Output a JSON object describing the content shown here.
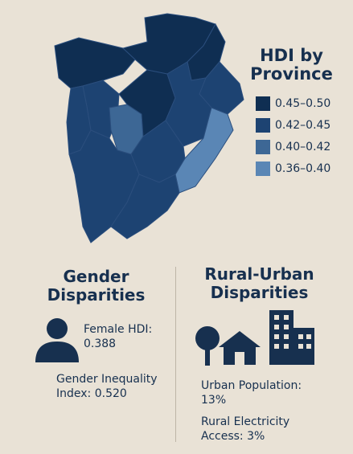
{
  "legend": {
    "title": "HDI by Province",
    "items": [
      {
        "label": "0.45–0.50",
        "color": "#0f2e52"
      },
      {
        "label": "0.42–0.45",
        "color": "#1d4372"
      },
      {
        "label": "0.40–0.42",
        "color": "#3d6795"
      },
      {
        "label": "0.36–0.40",
        "color": "#5a86b5"
      }
    ]
  },
  "gender": {
    "title": "Gender Disparities",
    "female_hdi": "Female HDI: 0.388",
    "gii": "Gender Inequality Index: 0.520"
  },
  "rural_urban": {
    "title": "Rural-Urban Disparities",
    "urban_population": "Urban Population: 13%",
    "rural_electricity": "Rural Electricity Access: 3%"
  }
}
